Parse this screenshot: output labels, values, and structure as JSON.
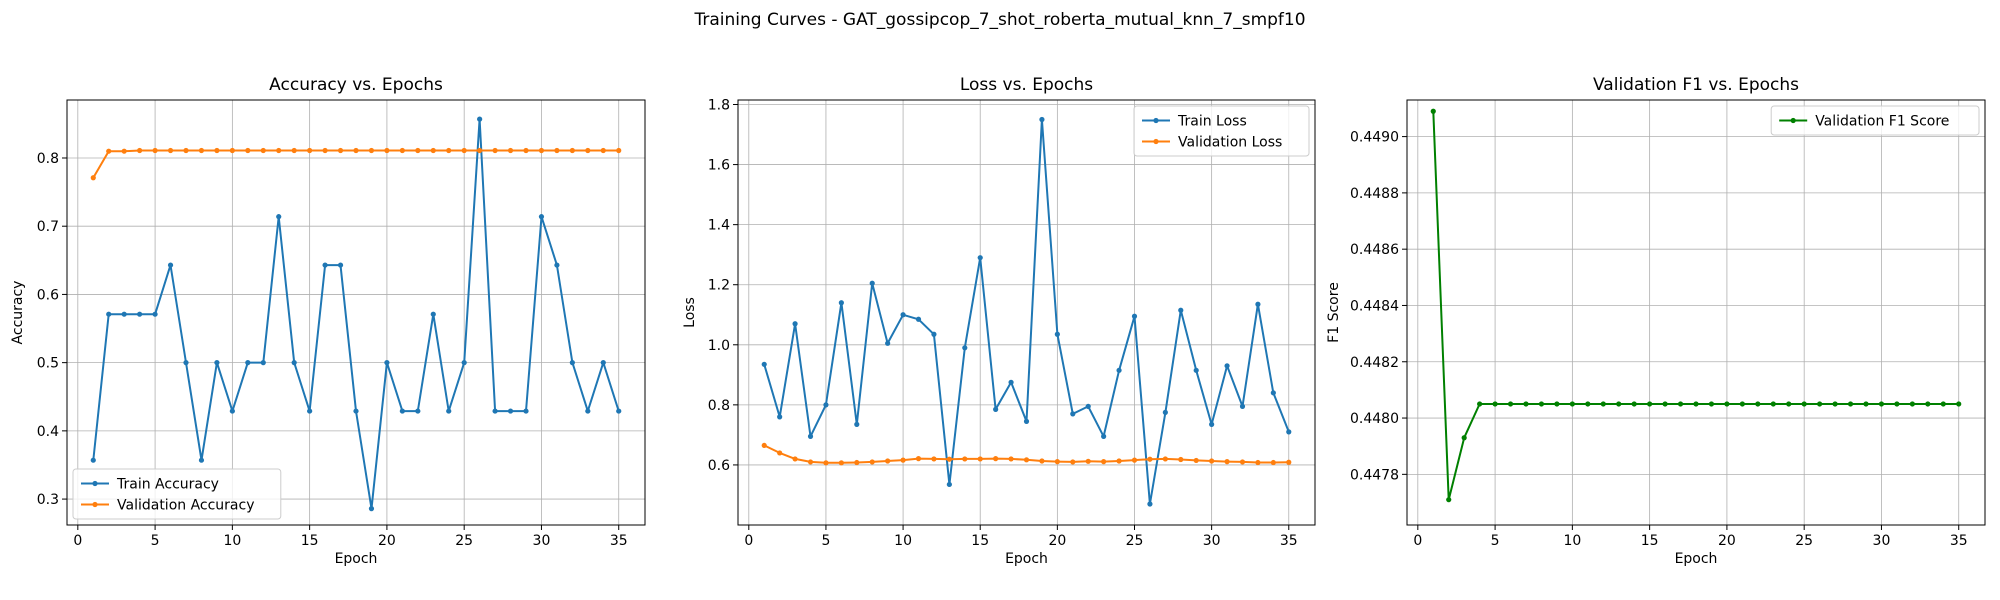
{
  "figure": {
    "suptitle": "Training Curves - GAT_gossipcop_7_shot_roberta_mutual_knn_7_smpf10"
  },
  "colors": {
    "train": "#1f77b4",
    "validation": "#ff7f0e",
    "f1": "#008000"
  },
  "chart_data": [
    {
      "id": "accuracy",
      "type": "line",
      "title": "Accuracy vs. Epochs",
      "xlabel": "Epoch",
      "ylabel": "Accuracy",
      "xlim": [
        -0.7,
        36.7
      ],
      "ylim": [
        0.262,
        0.885
      ],
      "xticks": [
        0,
        5,
        10,
        15,
        20,
        25,
        30,
        35
      ],
      "yticks": [
        0.3,
        0.4,
        0.5,
        0.6,
        0.7,
        0.8
      ],
      "ytick_labels": [
        "0.3",
        "0.4",
        "0.5",
        "0.6",
        "0.7",
        "0.8"
      ],
      "grid": true,
      "legend": "lower-left",
      "x": [
        1,
        2,
        3,
        4,
        5,
        6,
        7,
        8,
        9,
        10,
        11,
        12,
        13,
        14,
        15,
        16,
        17,
        18,
        19,
        20,
        21,
        22,
        23,
        24,
        25,
        26,
        27,
        28,
        29,
        30,
        31,
        32,
        33,
        34,
        35
      ],
      "series": [
        {
          "name": "Train Accuracy",
          "color": "#1f77b4",
          "values": [
            0.357,
            0.571,
            0.571,
            0.571,
            0.571,
            0.643,
            0.5,
            0.357,
            0.5,
            0.429,
            0.5,
            0.5,
            0.714,
            0.5,
            0.429,
            0.643,
            0.643,
            0.429,
            0.286,
            0.5,
            0.429,
            0.429,
            0.571,
            0.429,
            0.5,
            0.857,
            0.429,
            0.429,
            0.429,
            0.714,
            0.643,
            0.5,
            0.429,
            0.5,
            0.429
          ]
        },
        {
          "name": "Validation Accuracy",
          "color": "#ff7f0e",
          "values": [
            0.771,
            0.81,
            0.81,
            0.811,
            0.811,
            0.811,
            0.811,
            0.811,
            0.811,
            0.811,
            0.811,
            0.811,
            0.811,
            0.811,
            0.811,
            0.811,
            0.811,
            0.811,
            0.811,
            0.811,
            0.811,
            0.811,
            0.811,
            0.811,
            0.811,
            0.811,
            0.811,
            0.811,
            0.811,
            0.811,
            0.811,
            0.811,
            0.811,
            0.811,
            0.811
          ]
        }
      ]
    },
    {
      "id": "loss",
      "type": "line",
      "title": "Loss vs. Epochs",
      "xlabel": "Epoch",
      "ylabel": "Loss",
      "xlim": [
        -0.7,
        36.7
      ],
      "ylim": [
        0.4,
        1.815
      ],
      "xticks": [
        0,
        5,
        10,
        15,
        20,
        25,
        30,
        35
      ],
      "yticks": [
        0.6,
        0.8,
        1.0,
        1.2,
        1.4,
        1.6,
        1.8
      ],
      "ytick_labels": [
        "0.6",
        "0.8",
        "1.0",
        "1.2",
        "1.4",
        "1.6",
        "1.8"
      ],
      "grid": true,
      "legend": "top-right",
      "x": [
        1,
        2,
        3,
        4,
        5,
        6,
        7,
        8,
        9,
        10,
        11,
        12,
        13,
        14,
        15,
        16,
        17,
        18,
        19,
        20,
        21,
        22,
        23,
        24,
        25,
        26,
        27,
        28,
        29,
        30,
        31,
        32,
        33,
        34,
        35
      ],
      "series": [
        {
          "name": "Train Loss",
          "color": "#1f77b4",
          "values": [
            0.935,
            0.76,
            1.07,
            0.695,
            0.8,
            1.14,
            0.735,
            1.205,
            1.005,
            1.1,
            1.085,
            1.035,
            0.535,
            0.99,
            1.29,
            0.785,
            0.875,
            0.745,
            1.75,
            1.035,
            0.77,
            0.795,
            0.695,
            0.915,
            1.095,
            0.47,
            0.775,
            1.115,
            0.915,
            0.735,
            0.93,
            0.795,
            1.135,
            0.84,
            0.71
          ]
        },
        {
          "name": "Validation Loss",
          "color": "#ff7f0e",
          "values": [
            0.665,
            0.64,
            0.62,
            0.61,
            0.607,
            0.607,
            0.608,
            0.61,
            0.613,
            0.616,
            0.621,
            0.62,
            0.619,
            0.62,
            0.62,
            0.621,
            0.62,
            0.617,
            0.613,
            0.611,
            0.61,
            0.612,
            0.611,
            0.613,
            0.616,
            0.619,
            0.62,
            0.618,
            0.615,
            0.613,
            0.611,
            0.61,
            0.608,
            0.608,
            0.609
          ]
        }
      ]
    },
    {
      "id": "f1",
      "type": "line",
      "title": "Validation F1 vs. Epochs",
      "xlabel": "Epoch",
      "ylabel": "F1 Score",
      "xlim": [
        -0.7,
        36.7
      ],
      "ylim": [
        0.44762,
        0.44913
      ],
      "xticks": [
        0,
        5,
        10,
        15,
        20,
        25,
        30,
        35
      ],
      "yticks": [
        0.4478,
        0.448,
        0.4482,
        0.4484,
        0.4486,
        0.4488,
        0.449
      ],
      "ytick_labels": [
        "0.4478",
        "0.4480",
        "0.4482",
        "0.4484",
        "0.4486",
        "0.4488",
        "0.4490"
      ],
      "grid": true,
      "legend": "top-right",
      "x": [
        1,
        2,
        3,
        4,
        5,
        6,
        7,
        8,
        9,
        10,
        11,
        12,
        13,
        14,
        15,
        16,
        17,
        18,
        19,
        20,
        21,
        22,
        23,
        24,
        25,
        26,
        27,
        28,
        29,
        30,
        31,
        32,
        33,
        34,
        35
      ],
      "series": [
        {
          "name": "Validation F1 Score",
          "color": "#008000",
          "values": [
            0.44909,
            0.44771,
            0.44793,
            0.44805,
            0.44805,
            0.44805,
            0.44805,
            0.44805,
            0.44805,
            0.44805,
            0.44805,
            0.44805,
            0.44805,
            0.44805,
            0.44805,
            0.44805,
            0.44805,
            0.44805,
            0.44805,
            0.44805,
            0.44805,
            0.44805,
            0.44805,
            0.44805,
            0.44805,
            0.44805,
            0.44805,
            0.44805,
            0.44805,
            0.44805,
            0.44805,
            0.44805,
            0.44805,
            0.44805,
            0.44805
          ]
        }
      ]
    }
  ]
}
